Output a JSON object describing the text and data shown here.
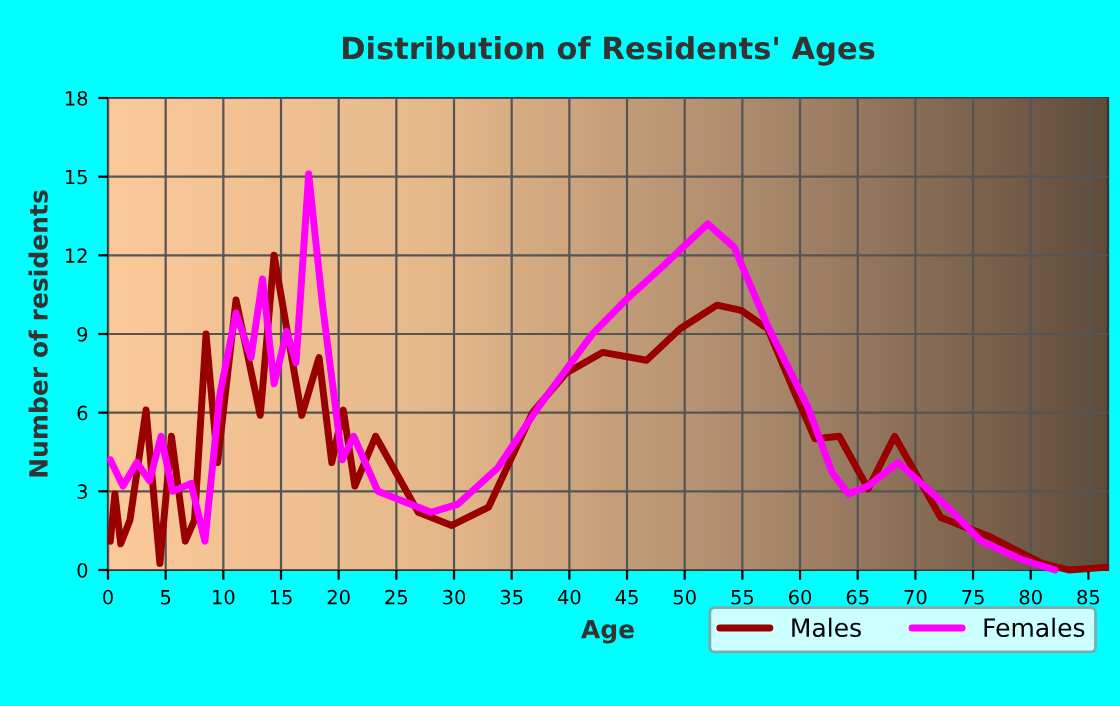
{
  "chart_data": {
    "type": "line",
    "title": "Distribution of Residents' Ages",
    "xlabel": "Age",
    "ylabel": "Number of residents",
    "xlim": [
      0,
      86.7
    ],
    "xticks": [
      0,
      5,
      10,
      15,
      20,
      25,
      30,
      35,
      40,
      45,
      50,
      55,
      60,
      65,
      70,
      75,
      80,
      85
    ],
    "ylim": [
      0,
      18
    ],
    "yticks": [
      0,
      3,
      6,
      9,
      12,
      15,
      18
    ],
    "grid": true,
    "legend": "bottom right",
    "line_style": "solid",
    "marker": "none",
    "series": [
      {
        "name": "Males",
        "color": "#990000",
        "x": [
          0.2,
          0.6,
          1.1,
          1.9,
          3.3,
          4.5,
          5.5,
          6.7,
          7.5,
          8.5,
          9.5,
          11.1,
          13.2,
          14.4,
          16.8,
          18.3,
          19.4,
          20.4,
          21.4,
          23.2,
          26.9,
          29.8,
          33,
          36.8,
          39.7,
          42.9,
          46.7,
          49.6,
          52.8,
          54.9,
          57.2,
          59.6,
          61.3,
          63.4,
          65.9,
          68.2,
          72.2,
          76.3,
          81,
          83.3,
          86.5
        ],
        "values": [
          1.1,
          2.9,
          1.0,
          1.9,
          6.1,
          0.25,
          5.1,
          1.1,
          1.9,
          9.0,
          4.1,
          10.3,
          5.9,
          12.0,
          5.9,
          8.1,
          4.1,
          6.1,
          3.2,
          5.1,
          2.2,
          1.7,
          2.4,
          6.0,
          7.5,
          8.3,
          8.0,
          9.2,
          10.1,
          9.9,
          9.2,
          6.7,
          5.0,
          5.1,
          3.1,
          5.1,
          2.0,
          1.3,
          0.25,
          0,
          0.1
        ]
      },
      {
        "name": "Females",
        "color": "#ff00ff",
        "x": [
          0.2,
          1.3,
          2.5,
          3.6,
          4.6,
          5.6,
          7.2,
          8.4,
          9.7,
          11.1,
          12.4,
          13.4,
          14.4,
          15.5,
          16.3,
          17.4,
          18.6,
          20.3,
          21.3,
          23.4,
          28.0,
          30.3,
          33.8,
          37.3,
          42,
          44.9,
          47.9,
          52,
          54.3,
          57.2,
          60.7,
          62.8,
          64.2,
          65.9,
          68.5,
          72.8,
          75.7,
          79.2,
          82.1
        ],
        "values": [
          4.2,
          3.2,
          4.1,
          3.4,
          5.1,
          3.0,
          3.3,
          1.1,
          6.7,
          9.8,
          8.1,
          11.1,
          7.1,
          9.1,
          7.9,
          15.1,
          10.1,
          4.2,
          5.1,
          3.0,
          2.2,
          2.5,
          3.9,
          6.2,
          9.0,
          10.3,
          11.5,
          13.2,
          12.3,
          9.3,
          6.2,
          3.7,
          2.9,
          3.2,
          4.1,
          2.4,
          1.1,
          0.4,
          0
        ]
      }
    ]
  }
}
